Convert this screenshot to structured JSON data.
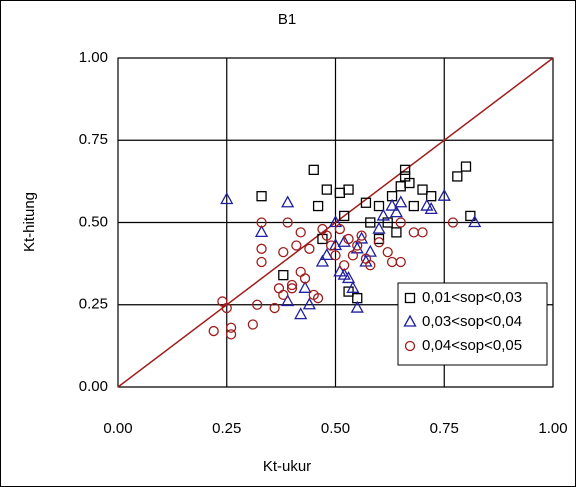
{
  "chart_data": {
    "type": "scatter",
    "title": "B1",
    "x_label": "Kt-ukur",
    "y_label": "Kt-hitung",
    "xlim": [
      0,
      1
    ],
    "ylim": [
      0,
      1
    ],
    "xticks": [
      {
        "value": 0,
        "label": "0.00"
      },
      0.25,
      {
        "value": 0.5,
        "label": "0.50"
      },
      0.75,
      {
        "value": 1,
        "label": "1.00"
      }
    ],
    "yticks": [
      {
        "value": 0,
        "label": "0.00"
      },
      0.25,
      {
        "value": 0.5,
        "label": "0.50"
      },
      0.75,
      {
        "value": 1,
        "label": "1.00"
      }
    ],
    "grid": true,
    "legend": "lower right",
    "diagonal_color": "#a01c1c",
    "series": [
      {
        "name": "0,01<sop<0,03",
        "color": "#000000",
        "marker": "square",
        "x": [
          0.33,
          0.45,
          0.48,
          0.51,
          0.53,
          0.57,
          0.6,
          0.63,
          0.65,
          0.66,
          0.67,
          0.66,
          0.7,
          0.72,
          0.78,
          0.8,
          0.81,
          0.64,
          0.62,
          0.55,
          0.53,
          0.47,
          0.46,
          0.38,
          0.52,
          0.58,
          0.6,
          0.68
        ],
        "values": [
          0.58,
          0.66,
          0.6,
          0.59,
          0.6,
          0.56,
          0.55,
          0.58,
          0.61,
          0.66,
          0.62,
          0.64,
          0.6,
          0.58,
          0.64,
          0.67,
          0.52,
          0.47,
          0.5,
          0.27,
          0.29,
          0.45,
          0.55,
          0.34,
          0.52,
          0.5,
          0.45,
          0.55
        ]
      },
      {
        "name": "0,03<sop<0,04",
        "color": "#1f1fa0",
        "marker": "triangle",
        "x": [
          0.25,
          0.33,
          0.39,
          0.39,
          0.42,
          0.44,
          0.48,
          0.5,
          0.51,
          0.52,
          0.53,
          0.54,
          0.55,
          0.55,
          0.56,
          0.58,
          0.6,
          0.61,
          0.63,
          0.64,
          0.65,
          0.71,
          0.72,
          0.75,
          0.82,
          0.5,
          0.47,
          0.52,
          0.57,
          0.43
        ],
        "values": [
          0.57,
          0.47,
          0.56,
          0.26,
          0.22,
          0.25,
          0.4,
          0.43,
          0.35,
          0.44,
          0.33,
          0.3,
          0.24,
          0.42,
          0.45,
          0.41,
          0.48,
          0.52,
          0.55,
          0.53,
          0.56,
          0.55,
          0.54,
          0.58,
          0.5,
          0.5,
          0.38,
          0.34,
          0.38,
          0.3
        ]
      },
      {
        "name": "0,04<sop<0,05",
        "color": "#a01c1c",
        "marker": "circle",
        "x": [
          0.22,
          0.24,
          0.25,
          0.26,
          0.26,
          0.31,
          0.32,
          0.33,
          0.33,
          0.33,
          0.37,
          0.38,
          0.38,
          0.39,
          0.4,
          0.41,
          0.42,
          0.43,
          0.44,
          0.45,
          0.46,
          0.47,
          0.48,
          0.49,
          0.5,
          0.51,
          0.52,
          0.53,
          0.54,
          0.55,
          0.56,
          0.57,
          0.58,
          0.6,
          0.62,
          0.63,
          0.65,
          0.65,
          0.68,
          0.7,
          0.77,
          0.42,
          0.36,
          0.4
        ],
        "values": [
          0.17,
          0.26,
          0.24,
          0.18,
          0.16,
          0.19,
          0.25,
          0.5,
          0.38,
          0.42,
          0.3,
          0.41,
          0.28,
          0.5,
          0.3,
          0.43,
          0.47,
          0.33,
          0.42,
          0.28,
          0.27,
          0.48,
          0.46,
          0.43,
          0.4,
          0.48,
          0.37,
          0.45,
          0.4,
          0.43,
          0.46,
          0.39,
          0.37,
          0.44,
          0.41,
          0.38,
          0.38,
          0.5,
          0.47,
          0.47,
          0.5,
          0.35,
          0.24,
          0.31
        ]
      }
    ]
  }
}
